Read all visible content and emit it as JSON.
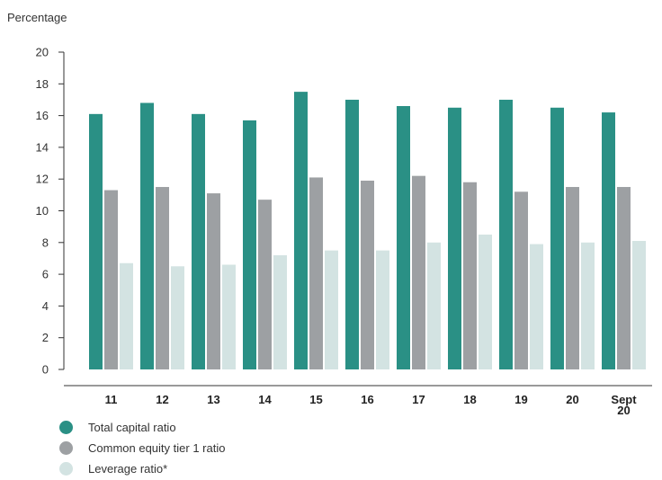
{
  "chart_data": {
    "type": "bar",
    "ylabel": "Percentage",
    "ylim": [
      0,
      20
    ],
    "yticks": [
      0,
      2,
      4,
      6,
      8,
      10,
      12,
      14,
      16,
      18,
      20
    ],
    "categories": [
      "11",
      "12",
      "13",
      "14",
      "15",
      "16",
      "17",
      "18",
      "19",
      "20",
      "Sept\n20"
    ],
    "series": [
      {
        "name": "Total capital ratio",
        "color": "#2a9085",
        "values": [
          16.1,
          16.8,
          16.1,
          15.7,
          17.5,
          17.0,
          16.6,
          16.5,
          17.0,
          16.5,
          16.2
        ]
      },
      {
        "name": "Common equity tier 1 ratio",
        "color": "#9da0a3",
        "values": [
          11.3,
          11.5,
          11.1,
          10.7,
          12.1,
          11.9,
          12.2,
          11.8,
          11.2,
          11.5,
          11.5
        ]
      },
      {
        "name": "Leverage ratio*",
        "color": "#d3e3e2",
        "values": [
          6.7,
          6.5,
          6.6,
          7.2,
          7.5,
          7.5,
          8.0,
          8.5,
          7.9,
          8.0,
          8.1
        ]
      }
    ],
    "grid": false,
    "legend": "bottom-left"
  }
}
